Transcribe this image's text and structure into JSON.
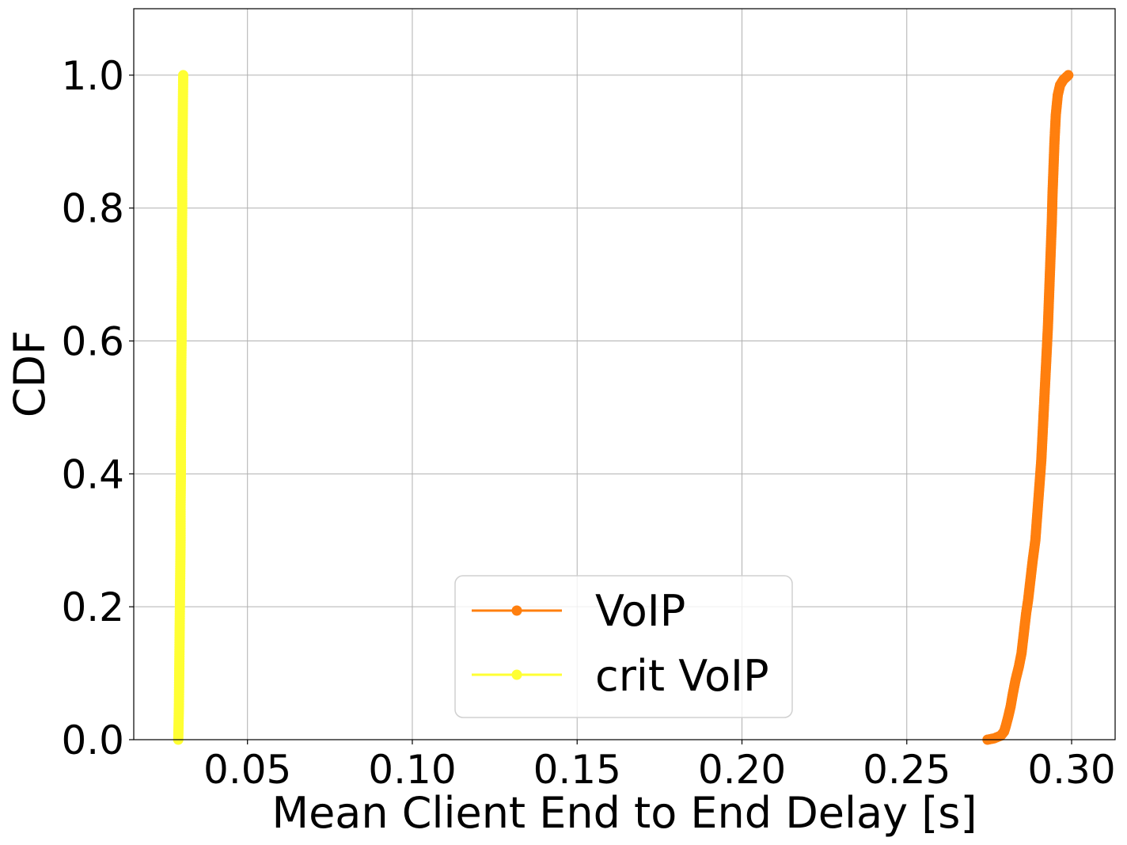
{
  "chart_data": {
    "type": "line",
    "title": "",
    "xlabel": "Mean Client End to End Delay [s]",
    "ylabel": "CDF",
    "xlim": [
      0.0155,
      0.3132
    ],
    "ylim": [
      0.0,
      1.1
    ],
    "x_ticks": [
      0.05,
      0.1,
      0.15,
      0.2,
      0.25,
      0.3
    ],
    "x_tick_labels": [
      "0.05",
      "0.10",
      "0.15",
      "0.20",
      "0.25",
      "0.30"
    ],
    "y_ticks": [
      0.0,
      0.2,
      0.4,
      0.6,
      0.8,
      1.0
    ],
    "y_tick_labels": [
      "0.0",
      "0.2",
      "0.4",
      "0.6",
      "0.8",
      "1.0"
    ],
    "grid": true,
    "legend_position": "lower center",
    "series": [
      {
        "name": "VoIP",
        "color": "#ff7f0e",
        "marker": "circle",
        "points": [
          [
            0.2745,
            0.0
          ],
          [
            0.2765,
            0.002
          ],
          [
            0.2785,
            0.006
          ],
          [
            0.2795,
            0.012
          ],
          [
            0.28,
            0.02
          ],
          [
            0.2808,
            0.035
          ],
          [
            0.2815,
            0.05
          ],
          [
            0.2822,
            0.07
          ],
          [
            0.283,
            0.09
          ],
          [
            0.284,
            0.11
          ],
          [
            0.2848,
            0.13
          ],
          [
            0.2855,
            0.16
          ],
          [
            0.2862,
            0.19
          ],
          [
            0.2868,
            0.21
          ],
          [
            0.2875,
            0.24
          ],
          [
            0.2882,
            0.27
          ],
          [
            0.289,
            0.3
          ],
          [
            0.2896,
            0.34
          ],
          [
            0.2902,
            0.38
          ],
          [
            0.2908,
            0.42
          ],
          [
            0.2912,
            0.46
          ],
          [
            0.2916,
            0.5
          ],
          [
            0.292,
            0.54
          ],
          [
            0.2924,
            0.58
          ],
          [
            0.2928,
            0.62
          ],
          [
            0.2931,
            0.66
          ],
          [
            0.2934,
            0.7
          ],
          [
            0.2937,
            0.74
          ],
          [
            0.294,
            0.78
          ],
          [
            0.2942,
            0.82
          ],
          [
            0.2945,
            0.86
          ],
          [
            0.2948,
            0.9
          ],
          [
            0.2952,
            0.94
          ],
          [
            0.2958,
            0.97
          ],
          [
            0.2965,
            0.985
          ],
          [
            0.2975,
            0.993
          ],
          [
            0.299,
            1.0
          ]
        ]
      },
      {
        "name": "crit VoIP",
        "color": "#ffff33",
        "marker": "circle",
        "points": [
          [
            0.029,
            0.0
          ],
          [
            0.0292,
            0.05
          ],
          [
            0.0293,
            0.1
          ],
          [
            0.0294,
            0.15
          ],
          [
            0.0295,
            0.2
          ],
          [
            0.0296,
            0.25
          ],
          [
            0.0297,
            0.3
          ],
          [
            0.0297,
            0.35
          ],
          [
            0.0298,
            0.4
          ],
          [
            0.0298,
            0.45
          ],
          [
            0.0299,
            0.5
          ],
          [
            0.0299,
            0.55
          ],
          [
            0.03,
            0.6
          ],
          [
            0.03,
            0.65
          ],
          [
            0.0301,
            0.7
          ],
          [
            0.0301,
            0.75
          ],
          [
            0.0302,
            0.8
          ],
          [
            0.0302,
            0.85
          ],
          [
            0.0303,
            0.9
          ],
          [
            0.0304,
            0.95
          ],
          [
            0.0305,
            1.0
          ]
        ]
      }
    ]
  }
}
